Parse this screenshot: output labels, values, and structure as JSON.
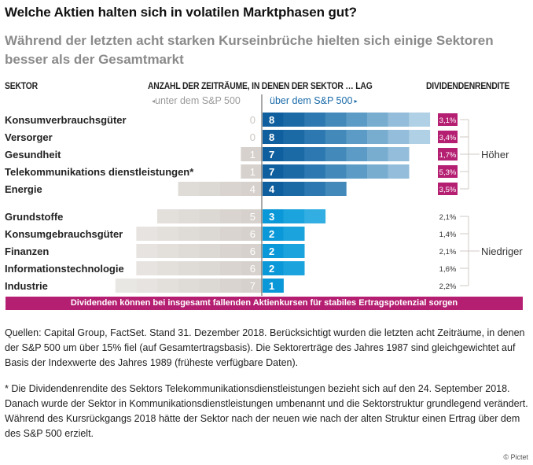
{
  "header": {
    "title": "Welche Aktien halten sich in volatilen Marktphasen gut?",
    "subtitle": "Während der letzten acht starken Kurseinbrüche hielten sich einige Sektoren besser als der Gesamtmarkt"
  },
  "columns": {
    "sector": "SEKTOR",
    "periods": "ANZAHL DER ZEITRÄUME, IN DENEN DER SEKTOR … LAG",
    "dividend": "DIVIDENDENRENDITE",
    "below": "unter dem S&P 500",
    "above": "über dem S&P 500"
  },
  "colors": {
    "high_blue": [
      "#0f5f9e",
      "#1b6aa6",
      "#2d78b0",
      "#438aba",
      "#5c9bc5",
      "#78add0",
      "#93bdda",
      "#b0d0e5"
    ],
    "low_blue": [
      "#0a98d8",
      "#1aa3dd",
      "#33aee2"
    ],
    "gray": [
      "#d6d1cc",
      "#d9d4cf",
      "#dcd8d3",
      "#dfdbd7",
      "#e3dfdb",
      "#e6e3e0",
      "#e9e7e4"
    ],
    "dividend_badge": "#b51f72",
    "banner": "#b51f72"
  },
  "chart_data": {
    "type": "bar",
    "title": "Welche Aktien halten sich in volatilen Marktphasen gut?",
    "subtitle": "Während der letzten acht starken Kurseinbrüche hielten sich einige Sektoren besser als der Gesamtmarkt",
    "xlabel": "Anzahl der Zeiträume, in denen der Sektor … lag",
    "categories": [
      "Konsumverbrauchsgüter",
      "Versorger",
      "Gesundheit",
      "Telekommunikations dienstleistungen*",
      "Energie",
      "Grundstoffe",
      "Konsumgebrauchsgüter",
      "Finanzen",
      "Informationstechnologie",
      "Industrie"
    ],
    "series": [
      {
        "name": "unter dem S&P 500",
        "values": [
          0,
          0,
          1,
          1,
          4,
          5,
          6,
          6,
          6,
          7
        ]
      },
      {
        "name": "über dem S&P 500",
        "values": [
          8,
          8,
          7,
          7,
          4,
          3,
          2,
          2,
          2,
          1
        ]
      }
    ],
    "dividend_yield": [
      "3,1%",
      "3,4%",
      "1,7%",
      "5,3%",
      "3,5%",
      "2,1%",
      "1,4%",
      "2,1%",
      "1,6%",
      "2,2%"
    ],
    "groups": [
      {
        "name": "Höher",
        "rows": [
          0,
          1,
          2,
          3,
          4
        ]
      },
      {
        "name": "Niedriger",
        "rows": [
          5,
          6,
          7,
          8,
          9
        ]
      }
    ],
    "xlim": [
      -8,
      8
    ],
    "grid": false
  },
  "banner": "Dividenden können bei insgesamt fallenden Aktienkursen für stabiles Ertragspotenzial sorgen",
  "notes": [
    "Quellen: Capital Group, FactSet. Stand 31. Dezember 2018. Berücksichtigt wurden die letzten acht Zeiträume, in denen der S&P 500 um über 15% fiel (auf Gesamtertragsbasis). Die Sektorerträge des Jahres 1987 sind gleichgewichtet auf Basis der Indexwerte des Jahres 1989 (früheste verfügbare Daten).",
    "* Die Dividendenrendite des Sektors Telekommunikationsdienstleistungen bezieht sich auf den 24. September 2018. Danach wurde der Sektor in Kommunikationsdienstleistungen umbenannt und die Sektorstruktur grundlegend verändert. Während des Kursrückgangs 2018 hätte der Sektor nach der neuen wie nach der alten Struktur einen Ertrag über dem des S&P 500 erzielt."
  ],
  "copyright": "© Pictet"
}
